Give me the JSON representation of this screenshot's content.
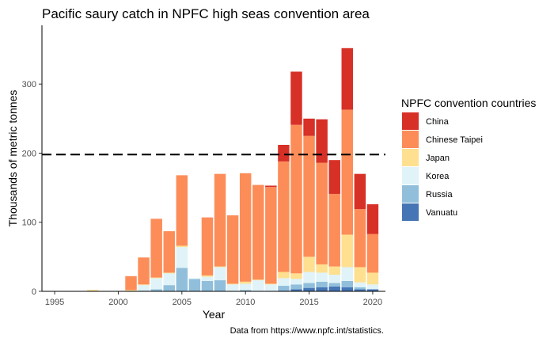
{
  "chart_data": {
    "type": "bar",
    "stacked": true,
    "title": "Pacific saury catch in NPFC high seas convention area",
    "xlabel": "Year",
    "ylabel": "Thousands of metric tonnes",
    "caption": "Data from https://www.npfc.int/statistics.",
    "xlim": [
      1994,
      2021
    ],
    "ylim": [
      0,
      385
    ],
    "x_ticks": [
      1995,
      2000,
      2005,
      2010,
      2015,
      2020
    ],
    "y_ticks": [
      0,
      100,
      200,
      300
    ],
    "reference_line": {
      "y": 198,
      "style": "dashed",
      "color": "#000000"
    },
    "legend": {
      "title": "NPFC convention countries",
      "position": "right"
    },
    "years": [
      1995,
      1996,
      1997,
      1998,
      1999,
      2000,
      2001,
      2002,
      2003,
      2004,
      2005,
      2006,
      2007,
      2008,
      2009,
      2010,
      2011,
      2012,
      2013,
      2014,
      2015,
      2016,
      2017,
      2018,
      2019,
      2020
    ],
    "series": [
      {
        "name": "Vanuatu",
        "color": "#4575b4",
        "values": [
          0,
          0,
          0,
          0,
          0,
          0,
          0,
          0,
          0,
          0,
          0,
          0,
          0,
          0,
          0,
          0,
          0,
          0,
          1,
          3,
          5,
          6,
          7,
          6,
          3,
          3
        ]
      },
      {
        "name": "Russia",
        "color": "#91bfdb",
        "values": [
          0,
          0,
          0,
          0,
          0,
          0,
          0,
          1,
          3,
          9,
          34,
          18,
          15,
          16,
          0,
          2,
          0,
          0,
          7,
          7,
          7,
          8,
          5,
          9,
          3,
          0
        ]
      },
      {
        "name": "Korea",
        "color": "#e0f3f8",
        "values": [
          0,
          0,
          0,
          0,
          0,
          0,
          0,
          8,
          16,
          17,
          30,
          1,
          6,
          19,
          10,
          9,
          16,
          10,
          11,
          8,
          16,
          13,
          12,
          20,
          7,
          7
        ]
      },
      {
        "name": "Japan",
        "color": "#fee090",
        "values": [
          0,
          0,
          0,
          2,
          0,
          0,
          2,
          1,
          1,
          1,
          2,
          0,
          2,
          1,
          1,
          3,
          1,
          1,
          9,
          8,
          22,
          12,
          12,
          47,
          22,
          17
        ]
      },
      {
        "name": "Chinese Taipei",
        "color": "#fc8d59",
        "values": [
          0,
          0,
          0,
          0,
          0,
          0,
          20,
          39,
          85,
          60,
          102,
          0,
          84,
          134,
          99,
          157,
          137,
          140,
          160,
          215,
          175,
          147,
          105,
          181,
          84,
          56
        ]
      },
      {
        "name": "China",
        "color": "#d73027",
        "values": [
          0,
          0,
          0,
          0,
          0,
          0,
          0,
          0,
          0,
          0,
          0,
          0,
          0,
          0,
          0,
          0,
          0,
          2,
          24,
          77,
          25,
          63,
          49,
          89,
          51,
          43
        ]
      }
    ]
  }
}
